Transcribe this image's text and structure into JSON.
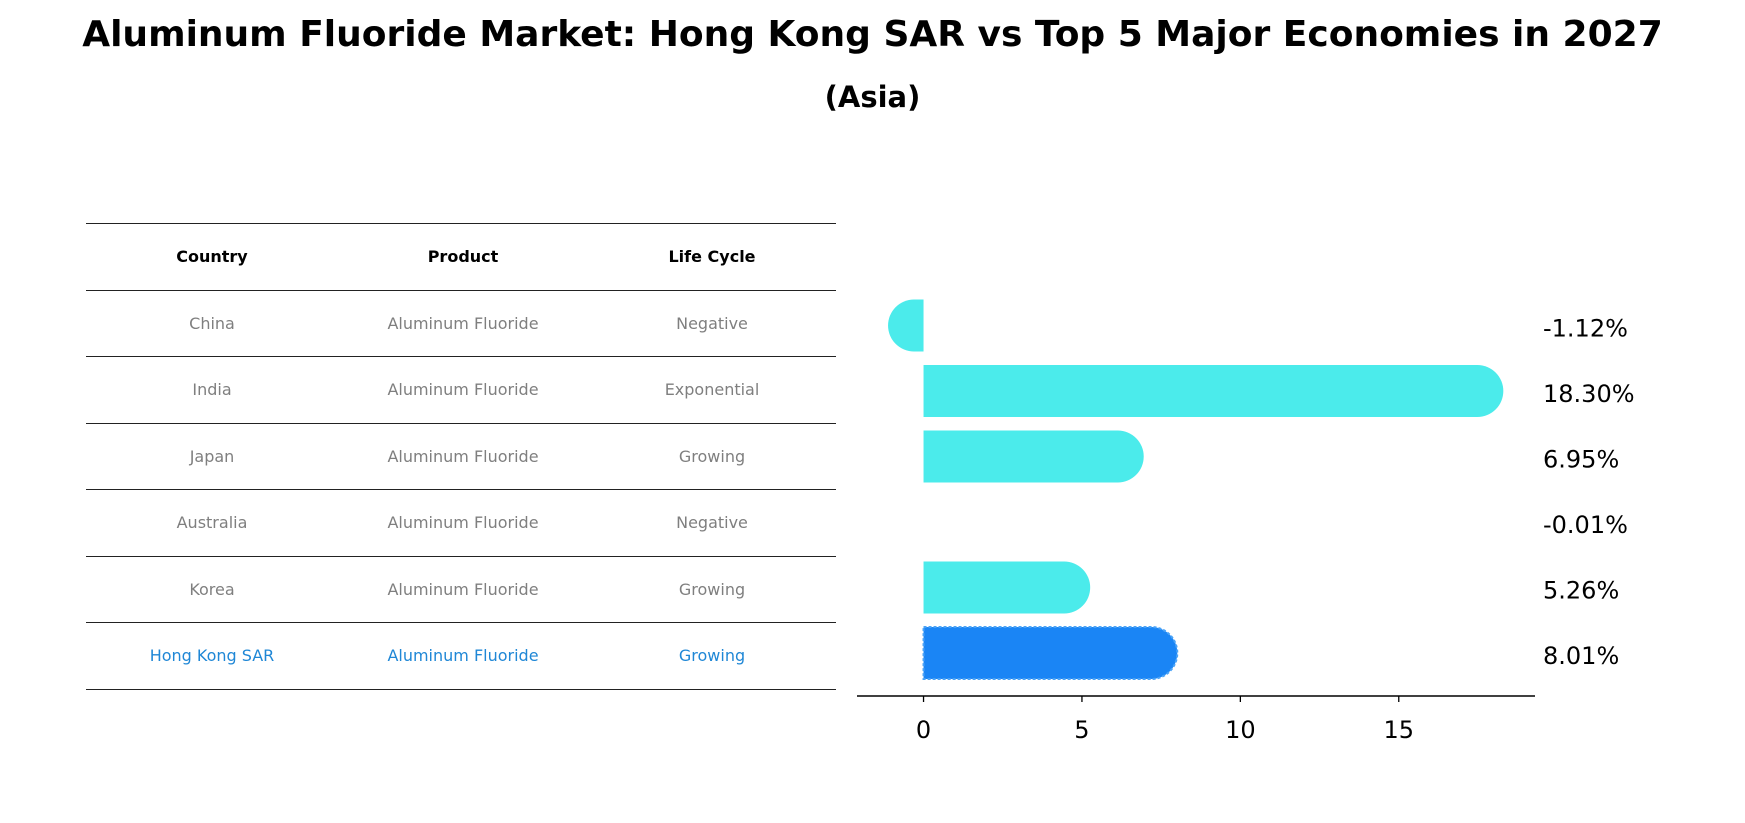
{
  "title": "Aluminum Fluoride Market: Hong Kong SAR vs Top 5 Major Economies in 2027",
  "subtitle": "(Asia)",
  "table": {
    "headers": [
      "Country",
      "Product",
      "Life Cycle"
    ],
    "rows": [
      {
        "country": "China",
        "product": "Aluminum Fluoride",
        "life_cycle": "Negative"
      },
      {
        "country": "India",
        "product": "Aluminum Fluoride",
        "life_cycle": "Exponential"
      },
      {
        "country": "Japan",
        "product": "Aluminum Fluoride",
        "life_cycle": "Growing"
      },
      {
        "country": "Australia",
        "product": "Aluminum Fluoride",
        "life_cycle": "Negative"
      },
      {
        "country": "Korea",
        "product": "Aluminum Fluoride",
        "life_cycle": "Growing"
      },
      {
        "country": "Hong Kong SAR",
        "product": "Aluminum Fluoride",
        "life_cycle": "Growing"
      }
    ]
  },
  "colors": {
    "bar": "#4bebeb",
    "highlight_bar": "#1a85f5",
    "highlight_text": "#1f87d6",
    "muted_text": "#7f7f7f"
  },
  "chart_data": {
    "type": "bar",
    "orientation": "horizontal",
    "categories": [
      "China",
      "India",
      "Japan",
      "Australia",
      "Korea",
      "Hong Kong SAR"
    ],
    "values": [
      -1.12,
      18.3,
      6.95,
      -0.01,
      5.26,
      8.01
    ],
    "value_labels": [
      "-1.12%",
      "18.30%",
      "6.95%",
      "-0.01%",
      "5.26%",
      "8.01%"
    ],
    "highlight_category": "Hong Kong SAR",
    "xlim": [
      -2.1,
      19.3
    ],
    "xticks": [
      0,
      5,
      10,
      15
    ],
    "xtick_labels": [
      "0",
      "5",
      "10",
      "15"
    ],
    "xlabel": "",
    "ylabel": "",
    "grid": false
  }
}
